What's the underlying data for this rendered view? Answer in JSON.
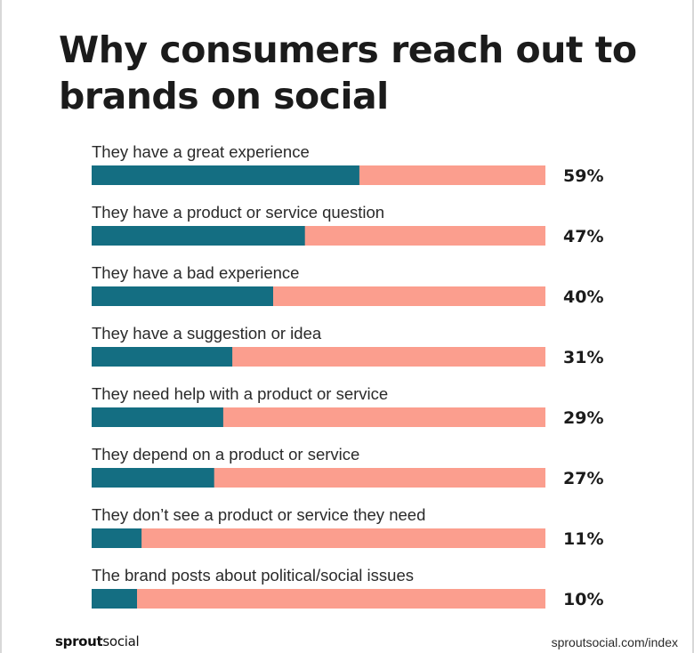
{
  "title": "Why consumers reach out to brands on social",
  "brand": {
    "part1": "sprout",
    "part2": "social"
  },
  "source": "sproutsocial.com/index",
  "colors": {
    "value_bar": "#146e82",
    "track_bar": "#fb9e8e"
  },
  "chart_data": {
    "type": "bar",
    "orientation": "horizontal",
    "categories": [
      "They have a great experience",
      "They have a product or service question",
      "They have a bad experience",
      "They have a suggestion or idea",
      "They need help with a product or service",
      "They depend on a product or service",
      "They don’t see a product or service they need",
      "The brand posts about political/social issues"
    ],
    "values": [
      59,
      47,
      40,
      31,
      29,
      27,
      11,
      10
    ],
    "value_labels": [
      "59%",
      "47%",
      "40%",
      "31%",
      "29%",
      "27%",
      "11%",
      "10%"
    ],
    "unit": "%",
    "xlim": [
      0,
      100
    ],
    "grid": false,
    "legend": "none"
  }
}
